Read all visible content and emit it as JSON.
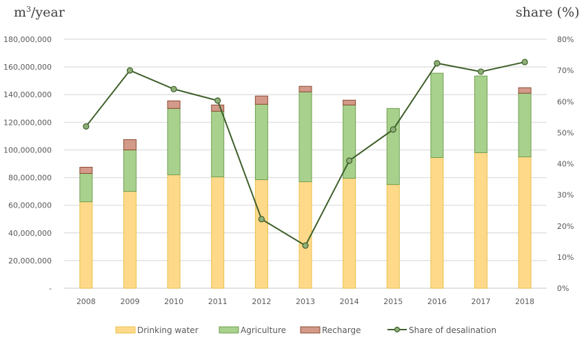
{
  "chart_data": {
    "type": "bar",
    "subtype": "stacked-bar-with-line",
    "title": "",
    "left_axis": {
      "label": "m³/year",
      "label_base": "m",
      "label_sup": "3",
      "label_rest": "/year",
      "range": [
        0,
        180000000
      ],
      "ticks": [
        0,
        20000000,
        40000000,
        60000000,
        80000000,
        100000000,
        120000000,
        140000000,
        160000000,
        180000000
      ],
      "tick_labels": [
        "-",
        "20,000,000",
        "40,000,000",
        "60,000,000",
        "80,000,000",
        "100,000,000",
        "120,000,000",
        "140,000,000",
        "160,000,000",
        "180,000,000"
      ]
    },
    "right_axis": {
      "label": "share (%)",
      "range": [
        0,
        80
      ],
      "ticks": [
        0,
        10,
        20,
        30,
        40,
        50,
        60,
        70,
        80
      ],
      "tick_labels": [
        "0%",
        "10%",
        "20%",
        "30%",
        "40%",
        "50%",
        "60%",
        "70%",
        "80%"
      ]
    },
    "grid": true,
    "legend_position": "bottom",
    "categories": [
      "2008",
      "2009",
      "2010",
      "2011",
      "2012",
      "2013",
      "2014",
      "2015",
      "2016",
      "2017",
      "2018"
    ],
    "series": [
      {
        "name": "Drinking water",
        "type": "bar",
        "axis": "left",
        "color": "#FFD98A",
        "border": "#E8C049",
        "values": [
          62500000,
          70000000,
          82000000,
          80500000,
          78500000,
          77000000,
          79500000,
          75000000,
          94500000,
          98000000,
          95000000
        ]
      },
      {
        "name": "Agriculture",
        "type": "bar",
        "axis": "left",
        "color": "#A9D18E",
        "border": "#6E9E4E",
        "values": [
          20500000,
          30000000,
          48000000,
          47500000,
          54500000,
          65000000,
          53000000,
          55000000,
          61000000,
          55500000,
          46000000
        ]
      },
      {
        "name": "Recharge",
        "type": "bar",
        "axis": "left",
        "color": "#D39A8A",
        "border": "#8B4A32",
        "values": [
          4500000,
          7500000,
          5500000,
          4500000,
          6000000,
          4000000,
          3500000,
          0,
          0,
          0,
          4000000
        ]
      },
      {
        "name": "Share of desalination",
        "type": "line",
        "axis": "right",
        "color": "#3E5F2A",
        "marker_color": "#8FAF78",
        "values": [
          52,
          70,
          64,
          60.3,
          22.2,
          13.7,
          41,
          51,
          72.3,
          69.6,
          72.7
        ]
      }
    ]
  }
}
